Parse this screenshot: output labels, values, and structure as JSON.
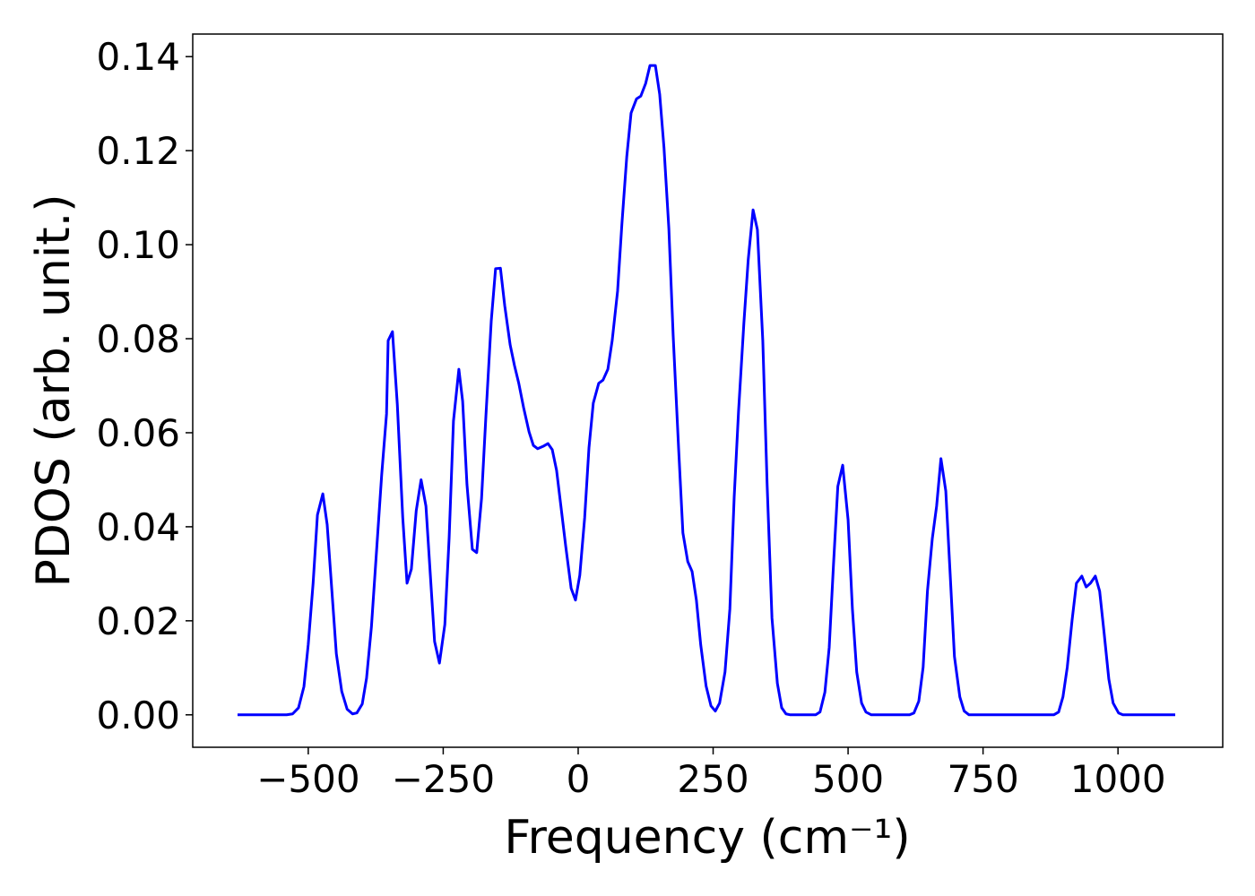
{
  "chart_data": {
    "type": "line",
    "xlabel": "Frequency (cm⁻¹)",
    "ylabel": "PDOS (arb. unit.)",
    "x": [
      -631,
      -540,
      -529,
      -518,
      -508,
      -500,
      -491,
      -483,
      -473,
      -465,
      -456,
      -448,
      -438,
      -428,
      -418,
      -410,
      -400,
      -392,
      -383,
      -374,
      -364,
      -355,
      -352,
      -344,
      -335,
      -325,
      -317,
      -309,
      -300,
      -291,
      -282,
      -274,
      -266,
      -257,
      -247,
      -239,
      -231,
      -221,
      -214,
      -206,
      -196,
      -188,
      -179,
      -171,
      -161,
      -153,
      -144,
      -136,
      -126,
      -118,
      -110,
      -101,
      -91,
      -83,
      -75,
      -65,
      -56,
      -48,
      -40,
      -32,
      -23,
      -13,
      -5,
      3,
      12,
      20,
      28,
      38,
      46,
      55,
      63,
      73,
      81,
      90,
      98,
      108,
      116,
      125,
      133,
      143,
      151,
      159,
      168,
      176,
      186,
      194,
      203,
      211,
      219,
      227,
      237,
      246,
      254,
      262,
      272,
      281,
      289,
      297,
      307,
      315,
      324,
      332,
      342,
      350,
      359,
      369,
      377,
      385,
      393,
      440,
      448,
      457,
      465,
      473,
      481,
      490,
      500,
      508,
      516,
      525,
      533,
      543,
      614,
      622,
      631,
      639,
      647,
      656,
      664,
      672,
      681,
      689,
      697,
      707,
      715,
      724,
      881,
      890,
      898,
      906,
      915,
      923,
      933,
      941,
      949,
      958,
      966,
      974,
      983,
      991,
      1001,
      1009,
      1106
    ],
    "series": [
      {
        "color": "#0000ff",
        "values": [
          0,
          0,
          0.0002,
          0.0015,
          0.006,
          0.015,
          0.028,
          0.0425,
          0.047,
          0.0405,
          0.026,
          0.013,
          0.005,
          0.0012,
          0.0002,
          0.0004,
          0.0023,
          0.0078,
          0.0187,
          0.034,
          0.051,
          0.064,
          0.0796,
          0.0815,
          0.066,
          0.042,
          0.028,
          0.031,
          0.0434,
          0.05,
          0.0444,
          0.03,
          0.0156,
          0.011,
          0.0192,
          0.0377,
          0.0625,
          0.0735,
          0.0667,
          0.049,
          0.0352,
          0.0345,
          0.046,
          0.0634,
          0.0838,
          0.0949,
          0.095,
          0.087,
          0.0787,
          0.0743,
          0.0705,
          0.0653,
          0.0602,
          0.0573,
          0.0566,
          0.0571,
          0.0577,
          0.0564,
          0.052,
          0.0444,
          0.0358,
          0.0269,
          0.0244,
          0.0297,
          0.0419,
          0.0568,
          0.0663,
          0.0705,
          0.0712,
          0.0735,
          0.0796,
          0.0901,
          0.1044,
          0.1187,
          0.128,
          0.131,
          0.1316,
          0.1343,
          0.1381,
          0.1381,
          0.132,
          0.1206,
          0.1034,
          0.0806,
          0.0568,
          0.0387,
          0.0326,
          0.0305,
          0.0244,
          0.0149,
          0.0061,
          0.0019,
          0.0008,
          0.0025,
          0.0091,
          0.0225,
          0.0463,
          0.0644,
          0.0834,
          0.0968,
          0.1074,
          0.1032,
          0.0796,
          0.0491,
          0.0206,
          0.0067,
          0.0015,
          0.0002,
          0,
          0,
          0.0006,
          0.0048,
          0.0143,
          0.032,
          0.0486,
          0.0531,
          0.0415,
          0.0225,
          0.0091,
          0.0025,
          0.0006,
          0,
          0,
          0.0004,
          0.0029,
          0.0101,
          0.0263,
          0.0375,
          0.0444,
          0.0545,
          0.0476,
          0.0301,
          0.0124,
          0.0038,
          0.0008,
          0,
          0,
          0.0006,
          0.0038,
          0.0101,
          0.0202,
          0.028,
          0.0295,
          0.0272,
          0.028,
          0.0295,
          0.0263,
          0.0177,
          0.0076,
          0.0025,
          0.0004,
          0,
          0
        ]
      }
    ],
    "xlim": [
      -714,
      1194
    ],
    "ylim": [
      -0.0069,
      0.1448
    ],
    "xticks": [
      {
        "value": -500,
        "label": "−500"
      },
      {
        "value": -250,
        "label": "−250"
      },
      0,
      250,
      500,
      750,
      1000
    ],
    "yticks": [
      {
        "value": 0,
        "label": "0.00"
      },
      {
        "value": 0.02,
        "label": "0.02"
      },
      {
        "value": 0.04,
        "label": "0.04"
      },
      {
        "value": 0.06,
        "label": "0.06"
      },
      {
        "value": 0.08,
        "label": "0.08"
      },
      {
        "value": 0.1,
        "label": "0.10"
      },
      {
        "value": 0.12,
        "label": "0.12"
      },
      {
        "value": 0.14,
        "label": "0.14"
      }
    ]
  }
}
